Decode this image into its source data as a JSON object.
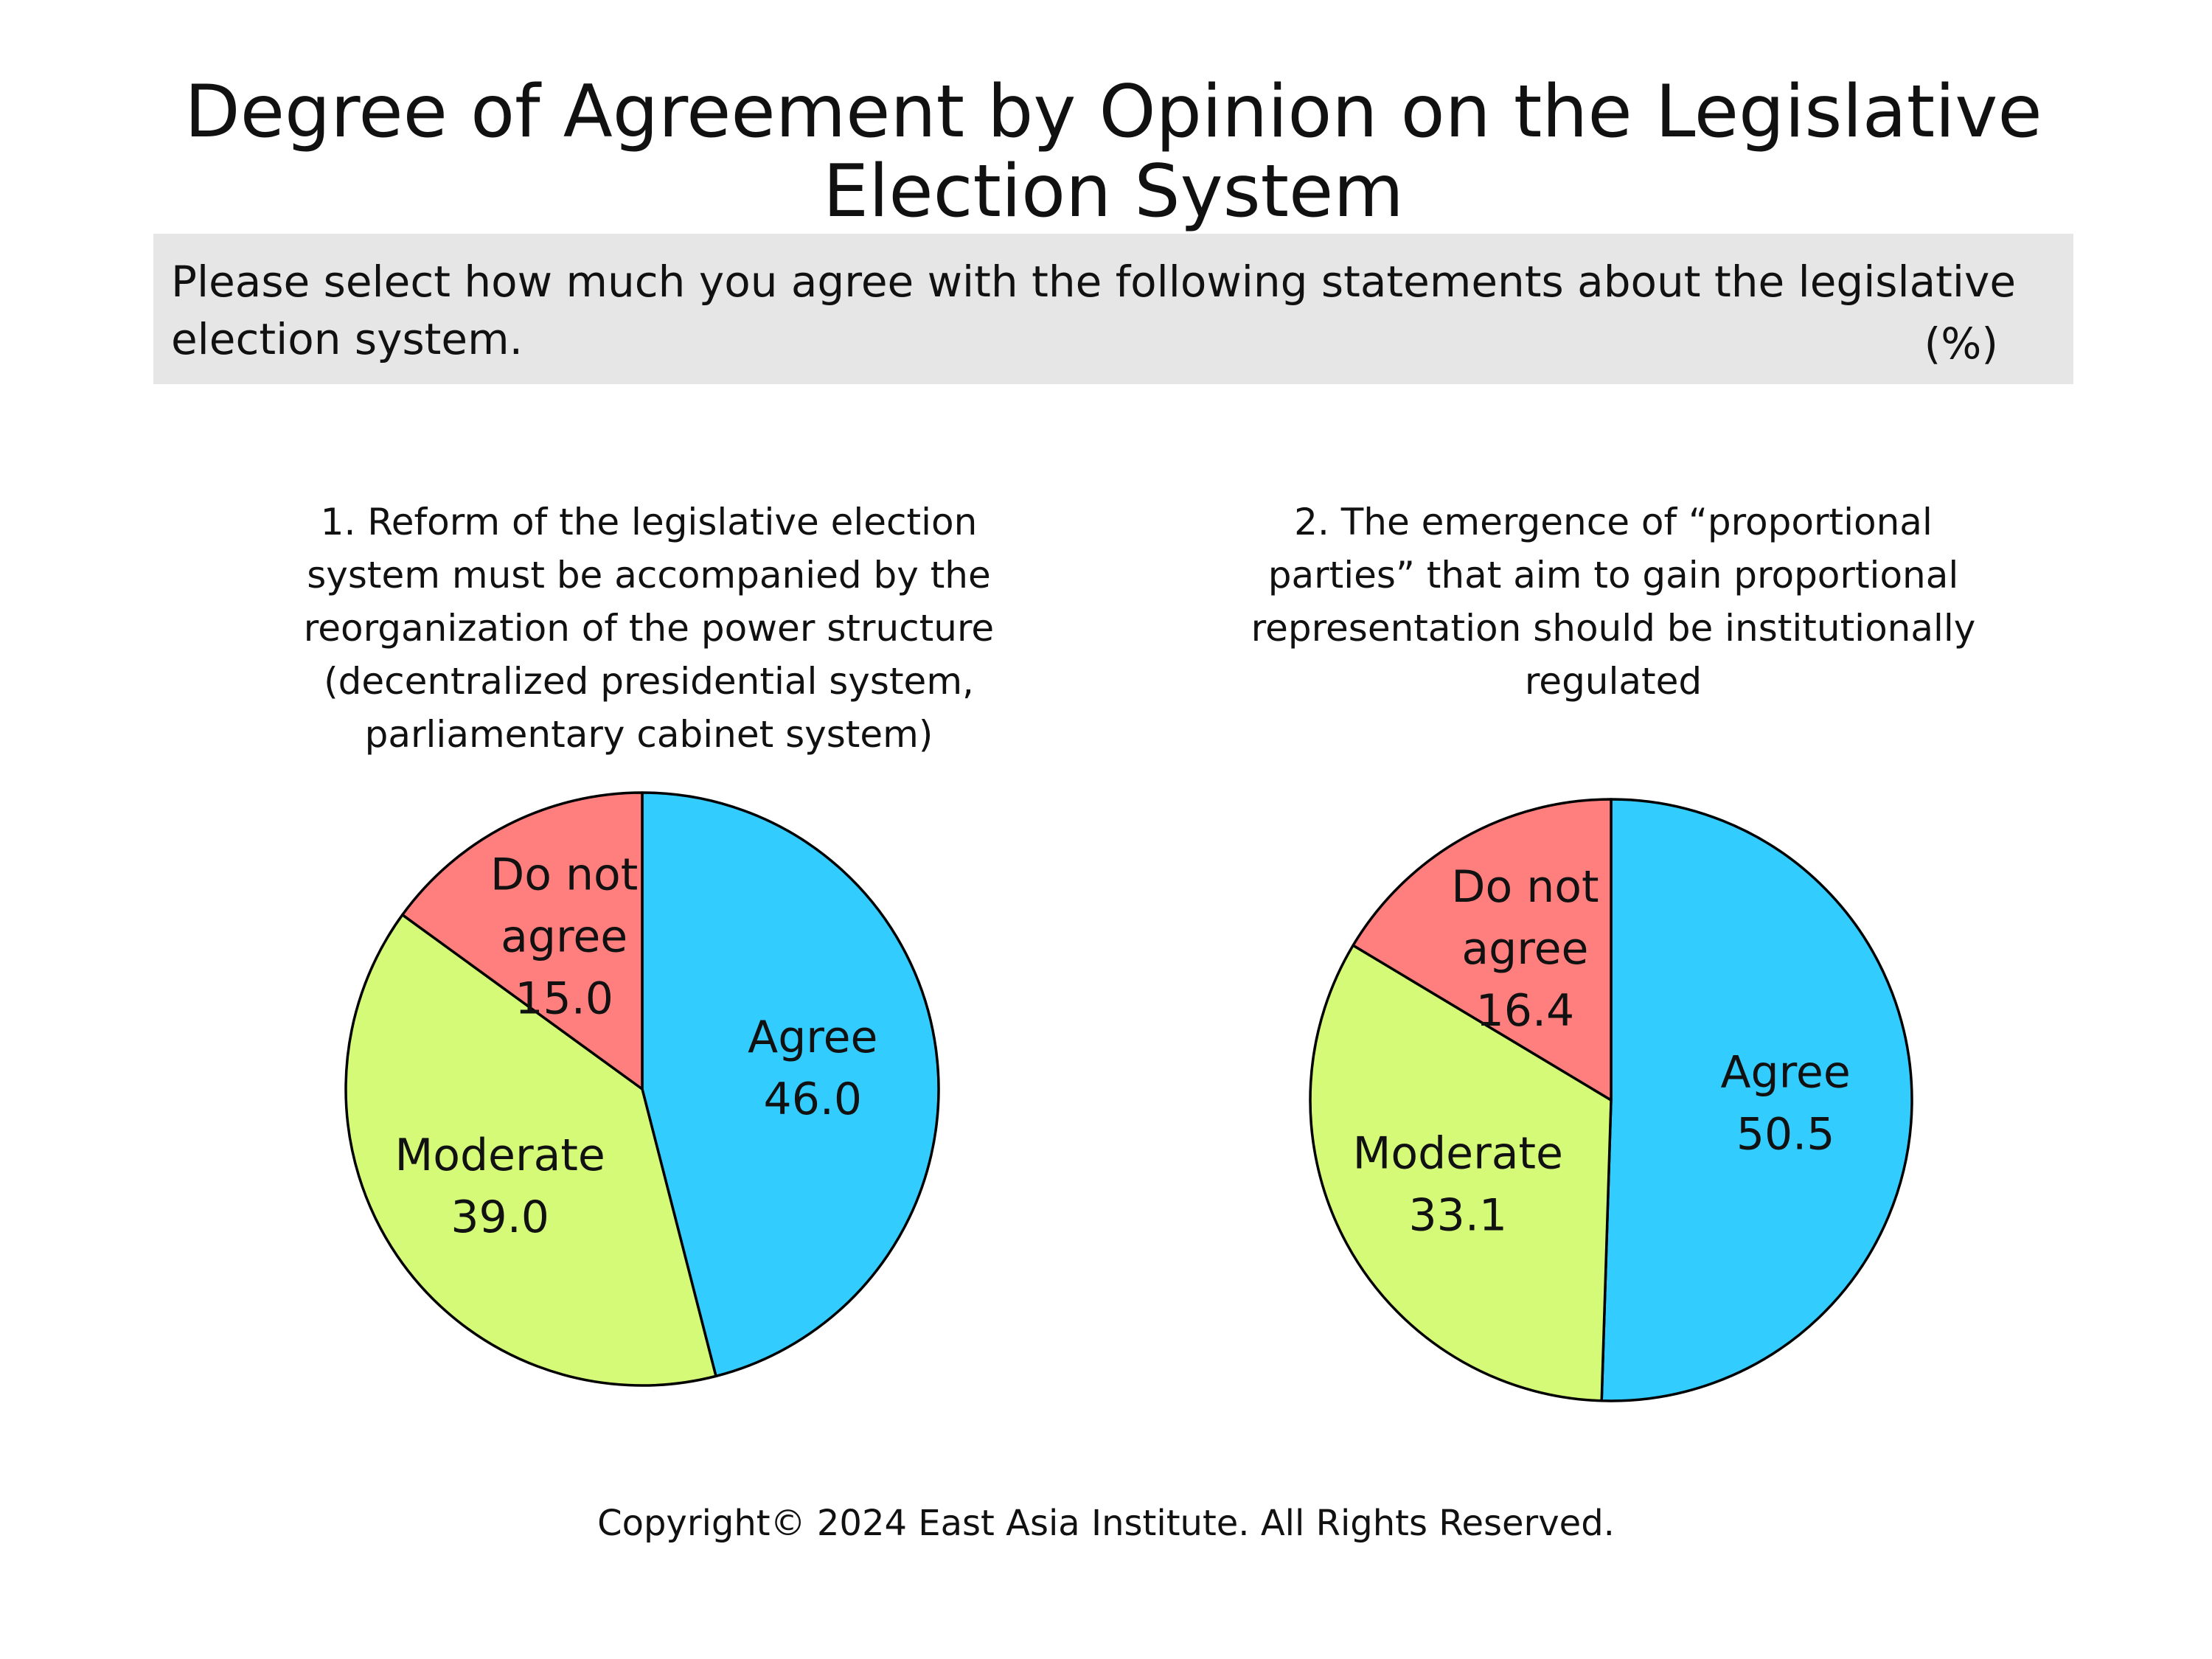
{
  "title_lines": [
    "Degree of Agreement by Opinion on the Legislative",
    "Election System"
  ],
  "question": "Please select how much you agree with the following statements about the legislative election system.",
  "unit": "(%)",
  "copyright": "Copyright© 2024 East Asia Institute. All Rights Reserved.",
  "chart_data": [
    {
      "type": "pie",
      "title_lines": [
        "1. Reform of the legislative election",
        "system must be accompanied by the",
        "reorganization of the power structure",
        "(decentralized presidential system,",
        "parliamentary cabinet system)"
      ],
      "slices": [
        {
          "label_lines": [
            "Agree"
          ],
          "value": 46.0,
          "display": "46.0",
          "color": "#33ccff"
        },
        {
          "label_lines": [
            "Moderate"
          ],
          "value": 39.0,
          "display": "39.0",
          "color": "#d4fa78"
        },
        {
          "label_lines": [
            "Do not",
            "agree"
          ],
          "value": 15.0,
          "display": "15.0",
          "color": "#ff7f7f"
        }
      ]
    },
    {
      "type": "pie",
      "title_lines": [
        "2. The emergence of “proportional",
        "parties” that aim to gain proportional",
        "representation should be institutionally",
        "regulated"
      ],
      "slices": [
        {
          "label_lines": [
            "Agree"
          ],
          "value": 50.5,
          "display": "50.5",
          "color": "#33ccff"
        },
        {
          "label_lines": [
            "Moderate"
          ],
          "value": 33.1,
          "display": "33.1",
          "color": "#d4fa78"
        },
        {
          "label_lines": [
            "Do not",
            "agree"
          ],
          "value": 16.4,
          "display": "16.4",
          "color": "#ff7f7f"
        }
      ]
    }
  ]
}
